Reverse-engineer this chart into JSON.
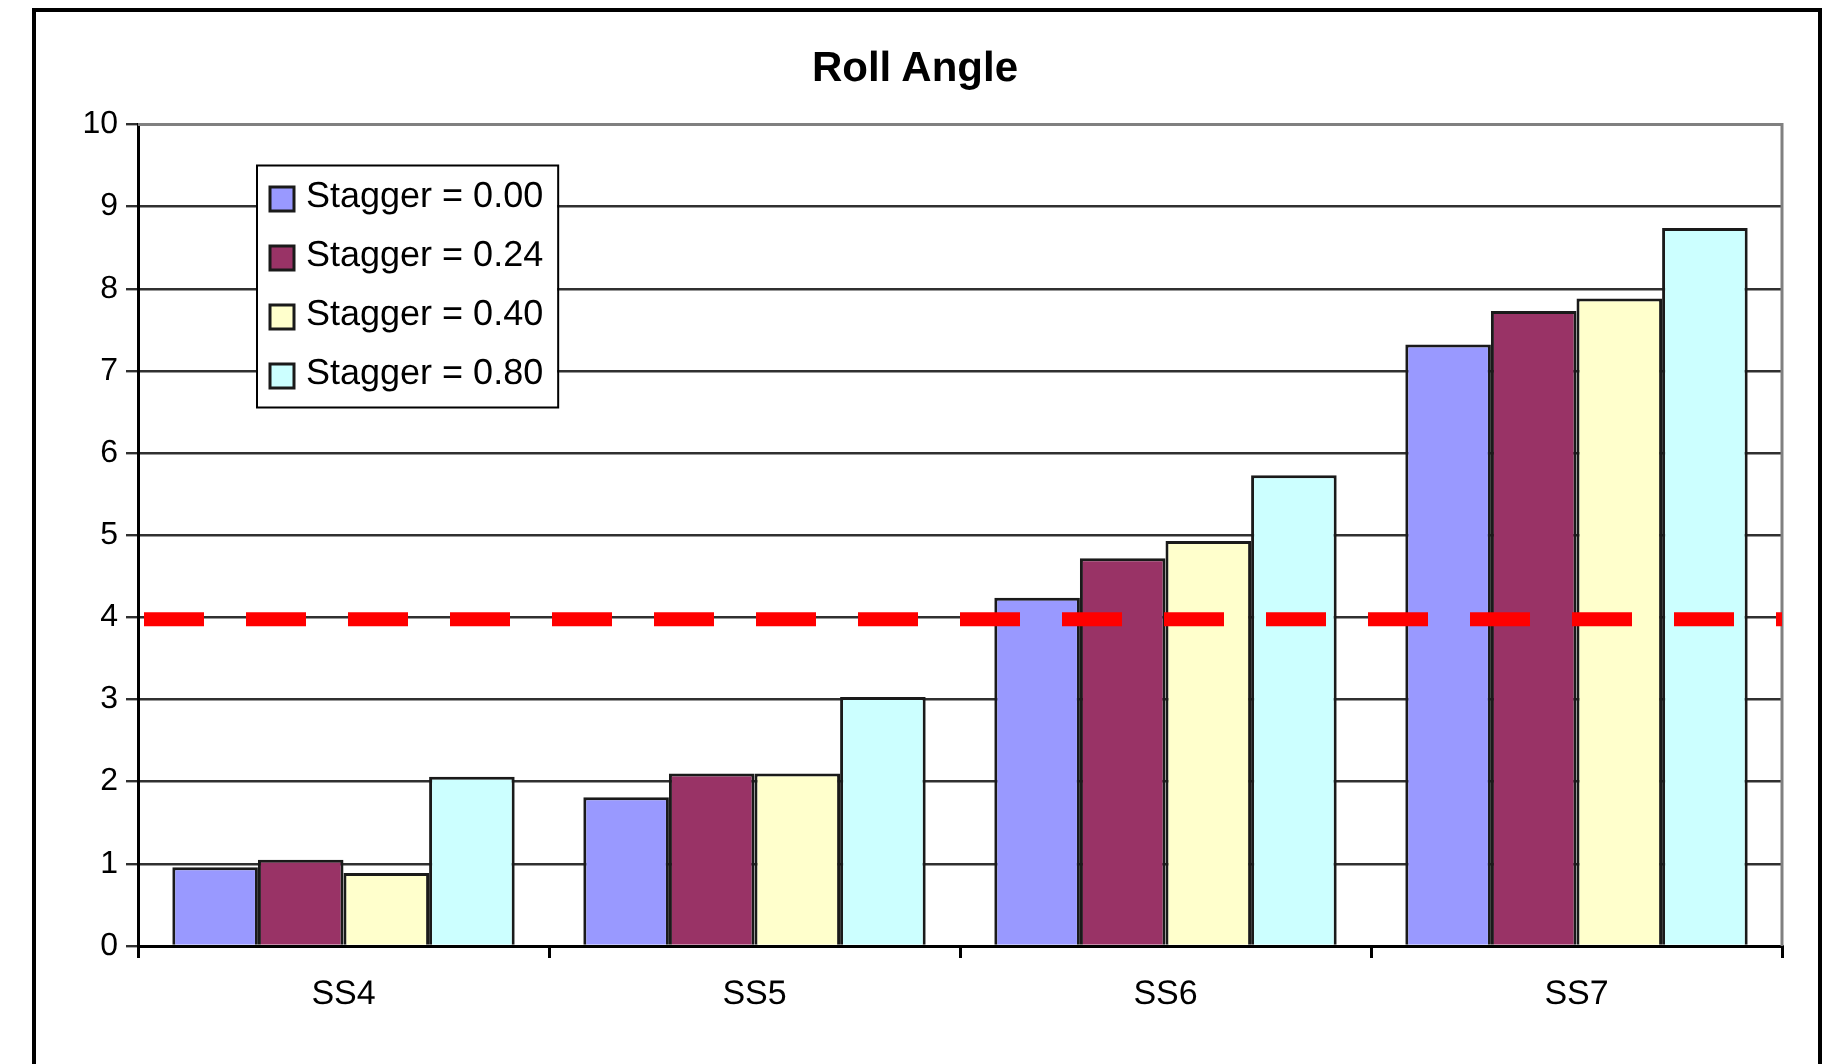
{
  "chart_data": {
    "type": "bar",
    "title": "Roll Angle",
    "categories": [
      "SS4",
      "SS5",
      "SS6",
      "SS7"
    ],
    "series": [
      {
        "name": "Stagger = 0.00",
        "color": "#9999ff",
        "values": [
          0.96,
          1.81,
          4.24,
          7.32
        ]
      },
      {
        "name": "Stagger = 0.24",
        "color": "#993366",
        "values": [
          1.05,
          2.1,
          4.72,
          7.73
        ]
      },
      {
        "name": "Stagger = 0.40",
        "color": "#ffffcc",
        "values": [
          0.89,
          2.1,
          4.93,
          7.88
        ]
      },
      {
        "name": "Stagger = 0.80",
        "color": "#ccffff",
        "values": [
          2.06,
          3.03,
          5.73,
          8.74
        ]
      }
    ],
    "ylim": [
      0,
      10
    ],
    "yticks": [
      0,
      1,
      2,
      3,
      4,
      5,
      6,
      7,
      8,
      9,
      10
    ],
    "grid": "y",
    "legend": "top left",
    "ref_lines": [
      {
        "axis": "y",
        "value": 4,
        "color": "#ff0000",
        "line_style": "dashed"
      }
    ]
  }
}
